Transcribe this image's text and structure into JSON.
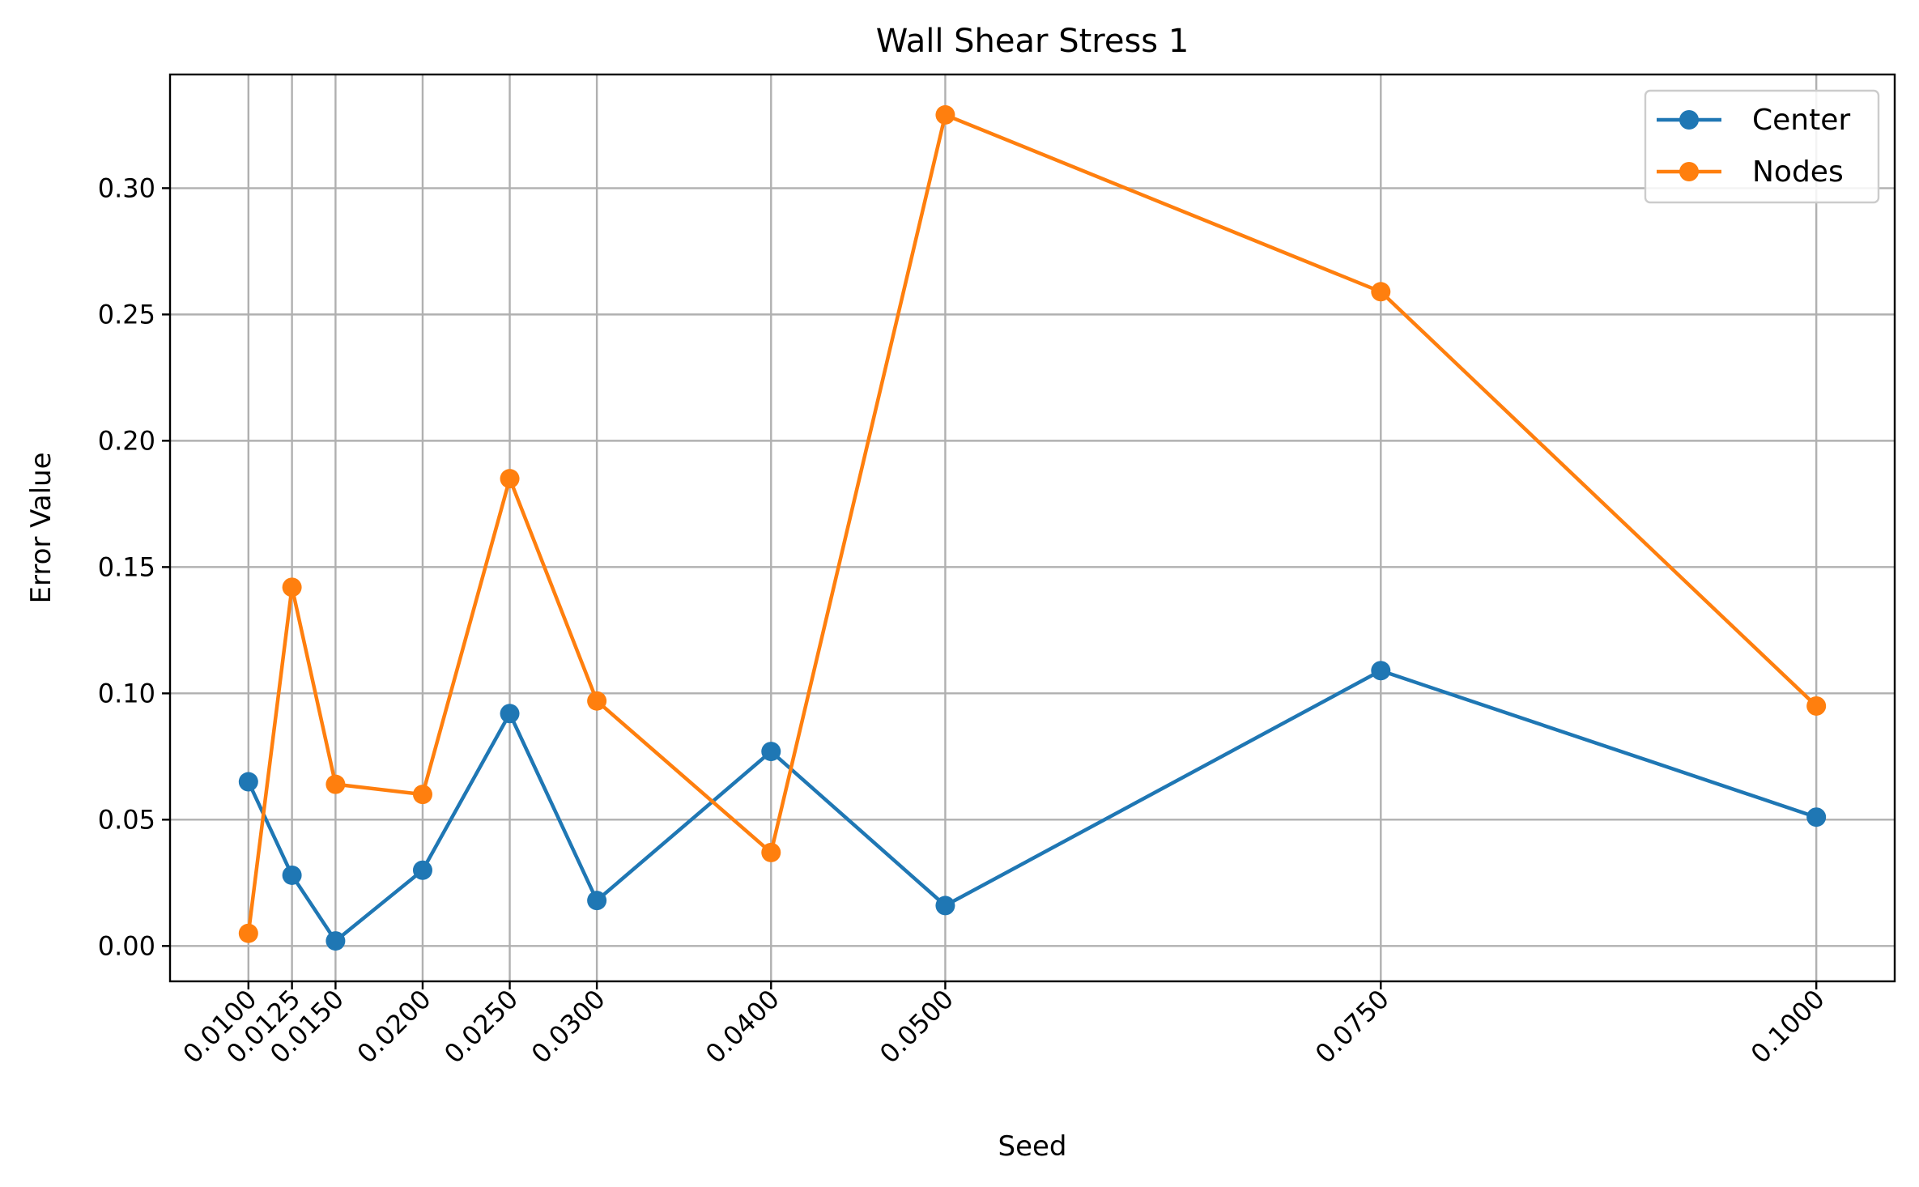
{
  "chart_data": {
    "type": "line",
    "title": "Wall Shear Stress 1",
    "xlabel": "Seed",
    "ylabel": "Error Value",
    "xlim": [
      0.0055,
      0.1045
    ],
    "ylim": [
      -0.014,
      0.345
    ],
    "x": [
      0.01,
      0.0125,
      0.015,
      0.02,
      0.025,
      0.03,
      0.04,
      0.05,
      0.075,
      0.1
    ],
    "x_tick_labels": [
      "0.0100",
      "0.0125",
      "0.0150",
      "0.0200",
      "0.0250",
      "0.0300",
      "0.0400",
      "0.0500",
      "0.0750",
      "0.1000"
    ],
    "y_ticks": [
      0.0,
      0.05,
      0.1,
      0.15,
      0.2,
      0.25,
      0.3
    ],
    "y_tick_labels": [
      "0.00",
      "0.05",
      "0.10",
      "0.15",
      "0.20",
      "0.25",
      "0.30"
    ],
    "grid": true,
    "legend_position": "top-right",
    "series": [
      {
        "name": "Center",
        "color": "#1f77b4",
        "values": [
          0.065,
          0.028,
          0.002,
          0.03,
          0.092,
          0.018,
          0.077,
          0.016,
          0.109,
          0.051
        ]
      },
      {
        "name": "Nodes",
        "color": "#ff7f0e",
        "values": [
          0.005,
          0.142,
          0.064,
          0.06,
          0.185,
          0.097,
          0.037,
          0.329,
          0.259,
          0.095
        ]
      }
    ]
  }
}
